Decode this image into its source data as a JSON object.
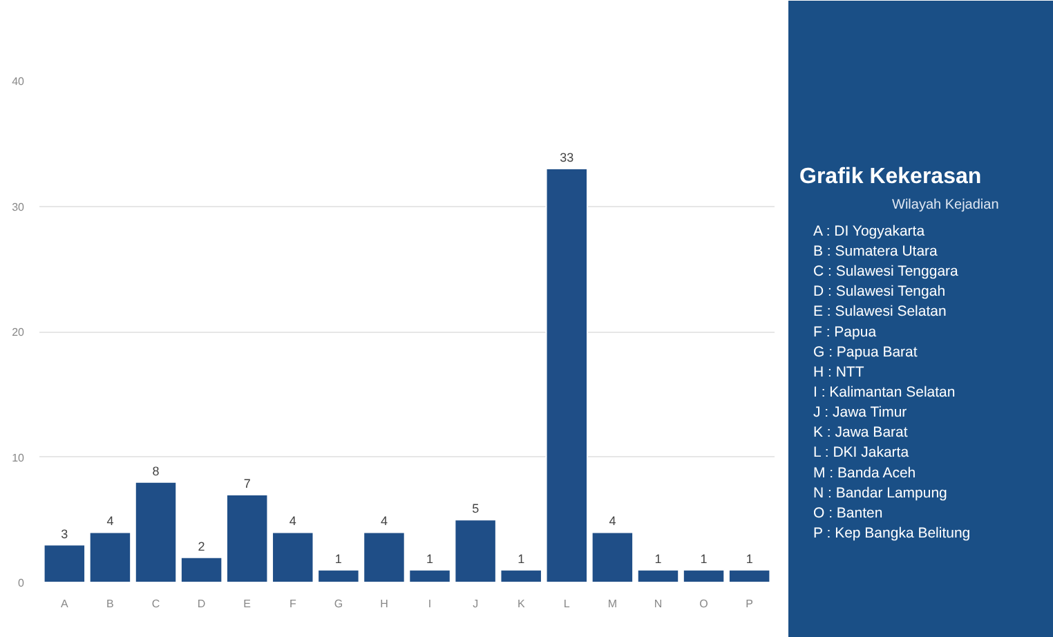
{
  "chart_data": {
    "type": "bar",
    "title": "Grafik Kekerasan",
    "subtitle": "Wilayah Kejadian",
    "categories": [
      "A",
      "B",
      "C",
      "D",
      "E",
      "F",
      "G",
      "H",
      "I",
      "J",
      "K",
      "L",
      "M",
      "N",
      "O",
      "P"
    ],
    "values": [
      3,
      4,
      8,
      2,
      7,
      4,
      1,
      4,
      1,
      5,
      1,
      33,
      4,
      1,
      1,
      1
    ],
    "color": "#1f4e87",
    "ylim": [
      0,
      40
    ],
    "yticks": [
      0,
      10,
      20,
      30,
      40
    ],
    "grid": "y",
    "data_labels": true,
    "annotations": [
      "A : DI Yogyakarta",
      "B : Sumatera Utara",
      "C : Sulawesi Tenggara",
      "D : Sulawesi Tengah",
      "E : Sulawesi Selatan",
      "F : Papua",
      "G : Papua Barat",
      "H : NTT",
      "I  : Kalimantan Selatan",
      "J : Jawa Timur",
      "K : Jawa Barat",
      "L  : DKI Jakarta",
      "M : Banda Aceh",
      "N : Bandar Lampung",
      "O : Banten",
      "P  : Kep Bangka Belitung"
    ]
  }
}
